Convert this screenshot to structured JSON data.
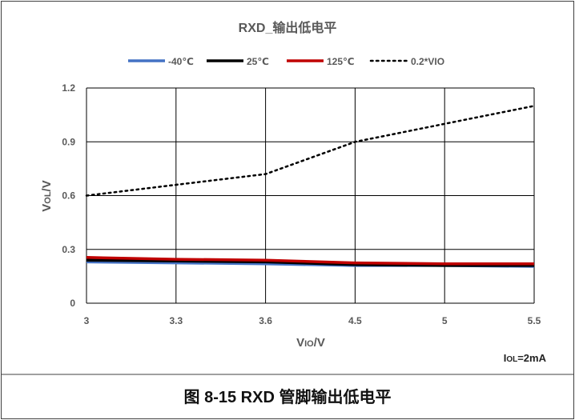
{
  "figure": {
    "caption": "图 8-15  RXD 管脚输出低电平",
    "note_prefix": "I",
    "note_sub": "OL",
    "note_suffix": "=2mA"
  },
  "colors": {
    "neg40": "#4472C4",
    "room": "#000000",
    "hot": "#C00000",
    "ref": "#000000",
    "grid": "#000000",
    "text": "#595959"
  },
  "chart_data": {
    "type": "line",
    "title": "RXD_输出低电平",
    "xlabel_main": "V",
    "xlabel_sub": "IO",
    "xlabel_suffix": "/V",
    "ylabel_main": "V",
    "ylabel_sub": "OL",
    "ylabel_suffix": "/V",
    "xlim": [
      3,
      5.5
    ],
    "ylim": [
      0,
      1.2
    ],
    "x_ticks": [
      3,
      3.3,
      3.6,
      4.5,
      5,
      5.5
    ],
    "x_tick_labels": [
      "3",
      "3.3",
      "3.6",
      "4.5",
      "5",
      "5.5"
    ],
    "y_ticks": [
      0,
      0.3,
      0.6,
      0.9,
      1.2
    ],
    "y_tick_labels": [
      "0",
      "0.3",
      "0.6",
      "0.9",
      "1.2"
    ],
    "x_axis": "category",
    "grid": true,
    "legend_position": "top",
    "x": [
      3,
      3.3,
      3.6,
      4.5,
      5,
      5.5
    ],
    "series": [
      {
        "name": "-40℃",
        "color_key": "neg40",
        "style": "solid",
        "values": [
          0.23,
          0.225,
          0.22,
          0.21,
          0.21,
          0.205
        ]
      },
      {
        "name": "25℃",
        "color_key": "room",
        "style": "solid",
        "values": [
          0.24,
          0.235,
          0.23,
          0.215,
          0.21,
          0.21
        ]
      },
      {
        "name": "125℃",
        "color_key": "hot",
        "style": "solid",
        "values": [
          0.255,
          0.245,
          0.24,
          0.225,
          0.22,
          0.22
        ]
      },
      {
        "name": "0.2*VIO",
        "color_key": "ref",
        "style": "dotted",
        "values": [
          0.6,
          0.66,
          0.72,
          0.9,
          1.0,
          1.1
        ]
      }
    ]
  }
}
